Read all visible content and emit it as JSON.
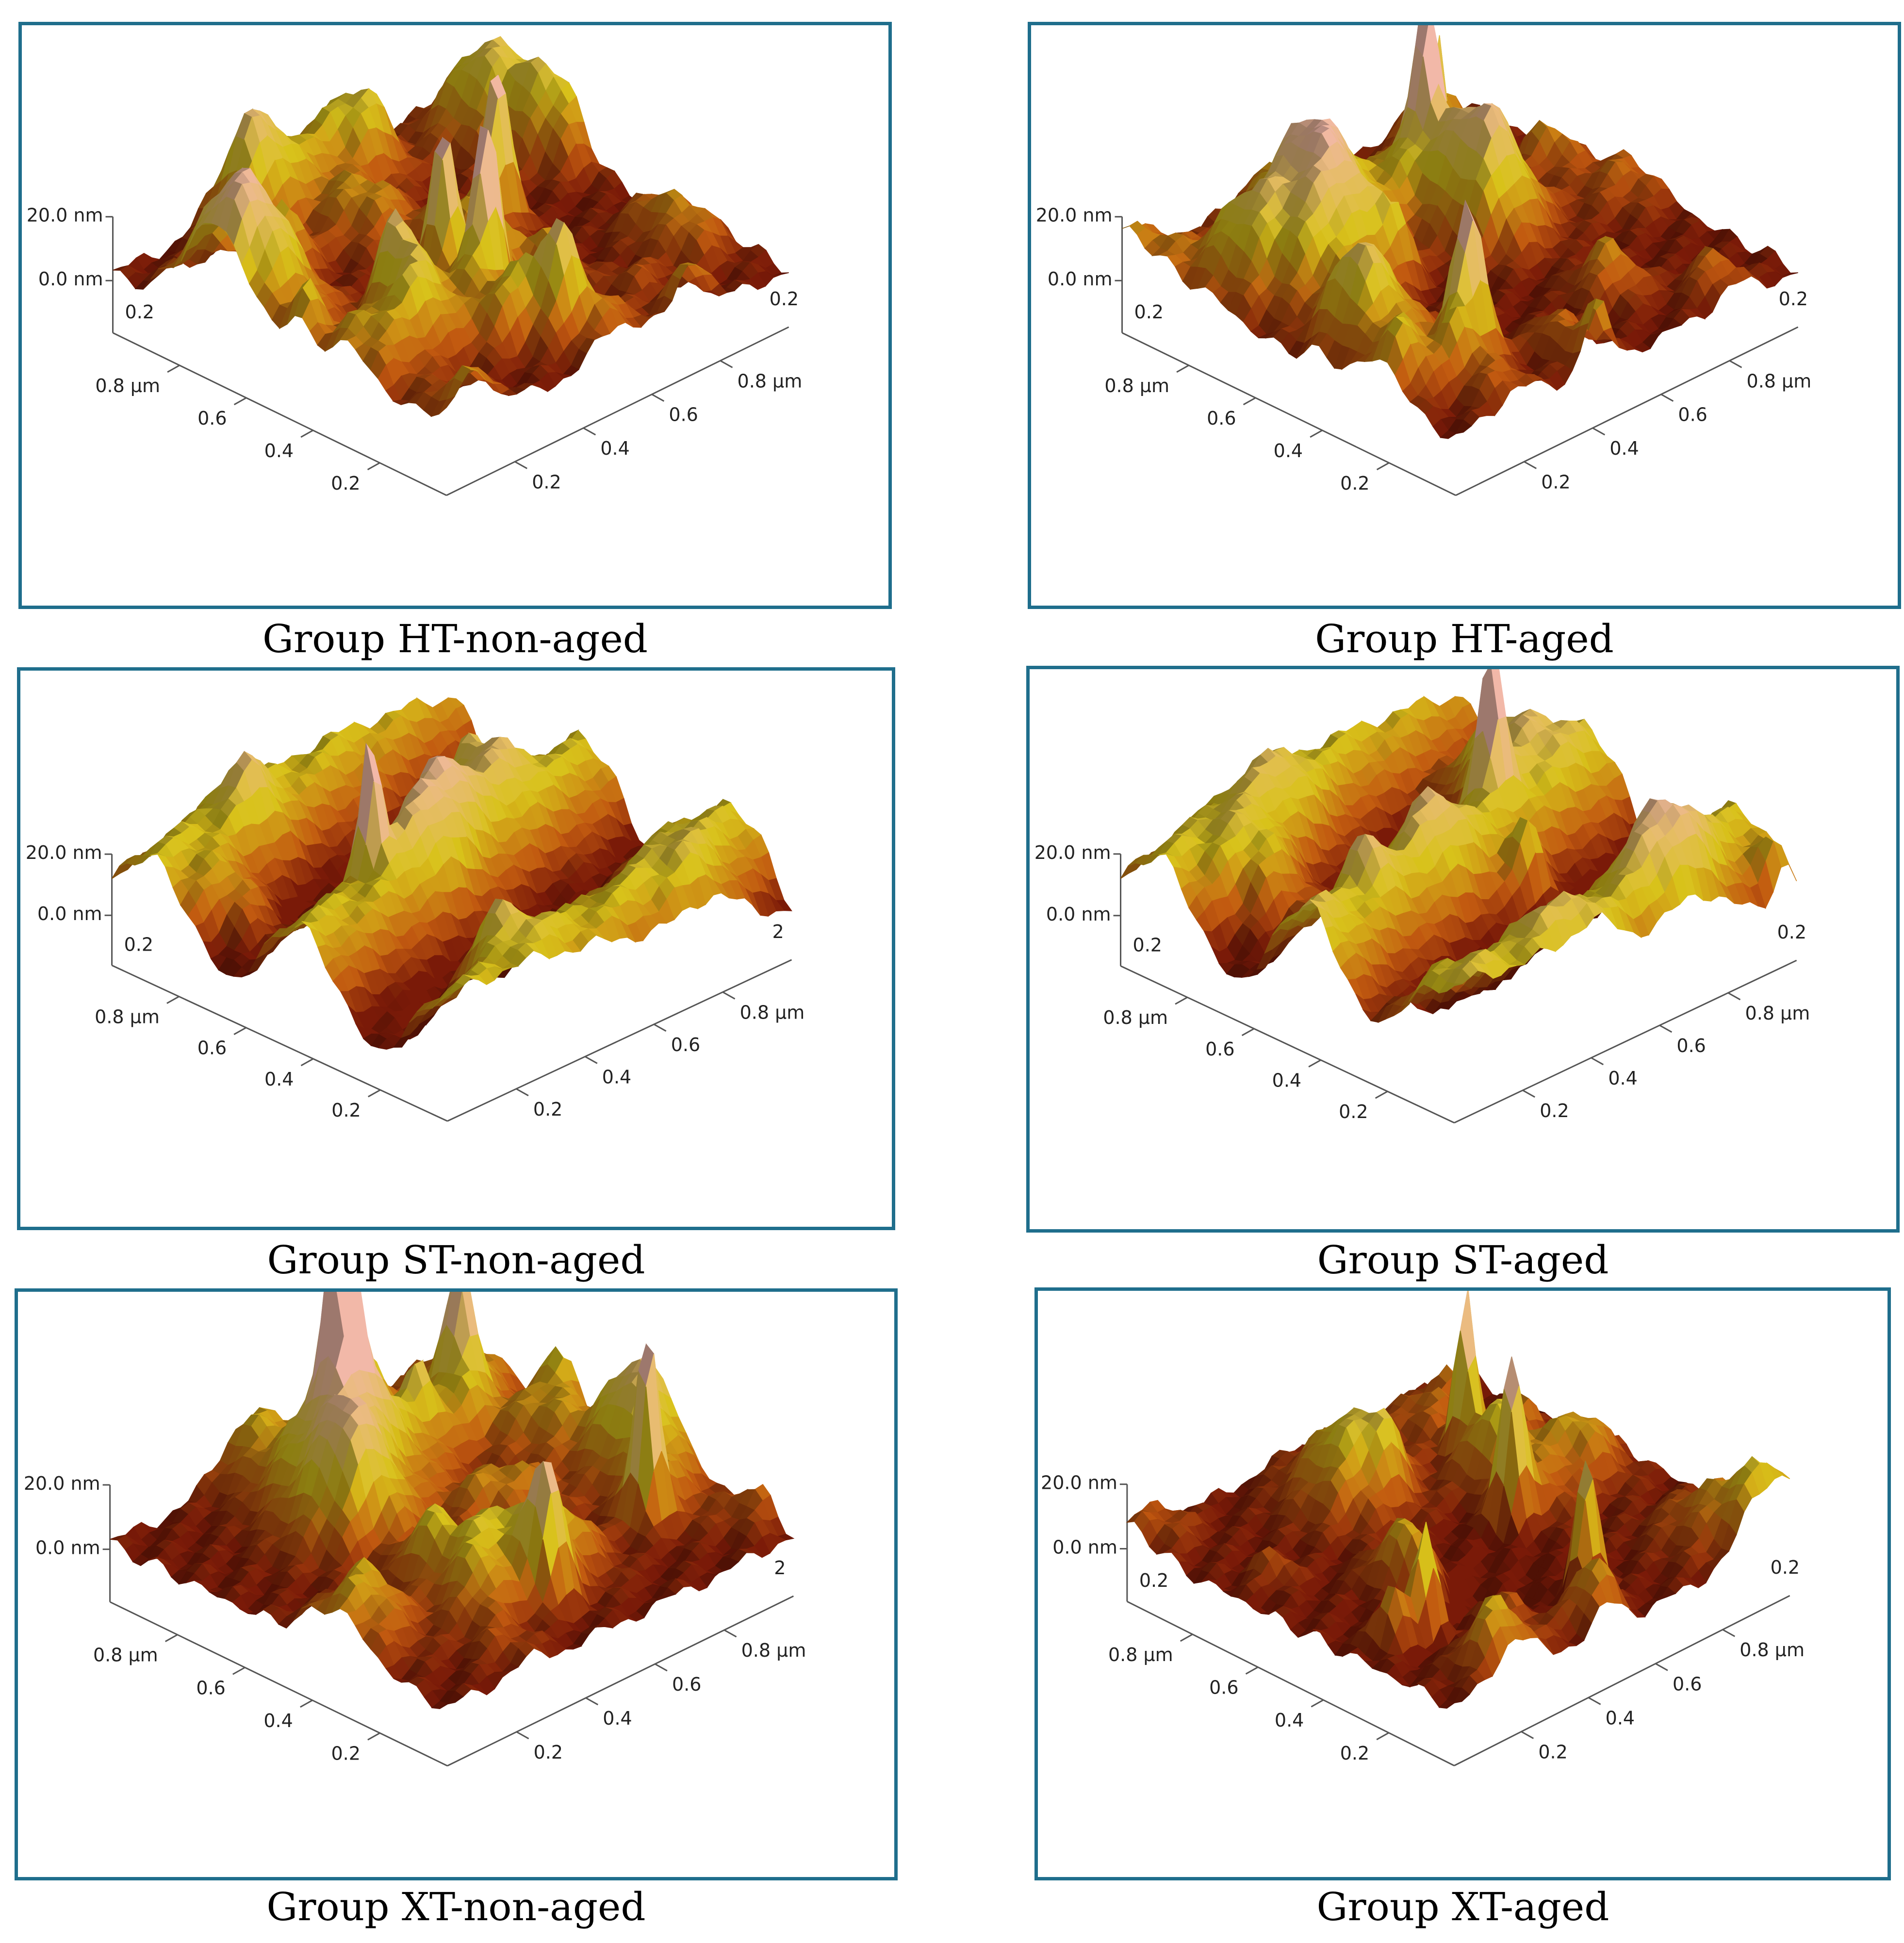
{
  "panels": [
    {
      "caption": "Group HT-non-aged",
      "z_ticks": [
        "20.0 nm",
        "0.0 nm"
      ],
      "x_ticks": [
        "0.8 μm",
        "0.6",
        "0.4",
        "0.2"
      ],
      "y_ticks": [
        "0.8 μm",
        "0.6",
        "0.4",
        "0.2"
      ],
      "edge_labels": [
        "0.2",
        "0.2"
      ],
      "surface": "rough-peaked"
    },
    {
      "caption": "Group HT-aged",
      "z_ticks": [
        "20.0 nm",
        "0.0 nm"
      ],
      "x_ticks": [
        "0.8 μm",
        "0.6",
        "0.4",
        "0.2"
      ],
      "y_ticks": [
        "0.8 μm",
        "0.6",
        "0.4",
        "0.2"
      ],
      "edge_labels": [
        "0.2",
        "0.2"
      ],
      "surface": "rough-ridged"
    },
    {
      "caption": "Group ST-non-aged",
      "z_ticks": [
        "20.0 nm",
        "0.0 nm"
      ],
      "x_ticks": [
        "0.8 μm",
        "0.6",
        "0.4",
        "0.2"
      ],
      "y_ticks": [
        "0.8 μm",
        "0.6",
        "0.4",
        "0.2"
      ],
      "edge_labels": [
        "0.2",
        "2"
      ],
      "surface": "smooth-grooved"
    },
    {
      "caption": "Group ST-aged",
      "z_ticks": [
        "20.0 nm",
        "0.0 nm"
      ],
      "x_ticks": [
        "0.8 μm",
        "0.6",
        "0.4",
        "0.2"
      ],
      "y_ticks": [
        "0.8 μm",
        "0.6",
        "0.4",
        "0.2"
      ],
      "edge_labels": [
        "0.2",
        "0.2"
      ],
      "surface": "grooved-ridged"
    },
    {
      "caption": "Group XT-non-aged",
      "z_ticks": [
        "20.0 nm",
        "0.0 nm"
      ],
      "x_ticks": [
        "0.8 μm",
        "0.6",
        "0.4",
        "0.2"
      ],
      "y_ticks": [
        "0.8 μm",
        "0.6",
        "0.4",
        "0.2"
      ],
      "edge_labels": [
        "",
        "2"
      ],
      "surface": "rough-spiked"
    },
    {
      "caption": "Group XT-aged",
      "z_ticks": [
        "20.0 nm",
        "0.0 nm"
      ],
      "x_ticks": [
        "0.8 μm",
        "0.6",
        "0.4",
        "0.2"
      ],
      "y_ticks": [
        "0.8 μm",
        "0.6",
        "0.4",
        "0.2"
      ],
      "edge_labels": [
        "0.2",
        "0.2"
      ],
      "surface": "spiked-valley"
    }
  ],
  "colors": {
    "frame": "#1f6e8c",
    "surface_dark": "#7a1a08",
    "surface_mid": "#c25a10",
    "surface_light": "#d8c21a",
    "surface_peak": "#f2b8a8"
  }
}
